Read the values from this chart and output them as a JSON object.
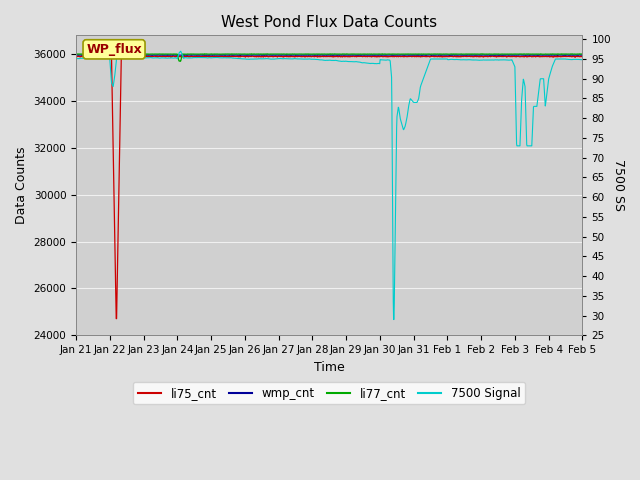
{
  "title": "West Pond Flux Data Counts",
  "xlabel": "Time",
  "ylabel_left": "Data Counts",
  "ylabel_right": "7500 SS",
  "ylim_left": [
    24000,
    36800
  ],
  "ylim_right": [
    25,
    101
  ],
  "yticks_left": [
    24000,
    26000,
    28000,
    30000,
    32000,
    34000,
    36000
  ],
  "yticks_right": [
    25,
    30,
    35,
    40,
    45,
    50,
    55,
    60,
    65,
    70,
    75,
    80,
    85,
    90,
    95,
    100
  ],
  "xtick_labels": [
    "Jan 21",
    "Jan 22",
    "Jan 23",
    "Jan 24",
    "Jan 25",
    "Jan 26",
    "Jan 27",
    "Jan 28",
    "Jan 29",
    "Jan 30",
    "Jan 31",
    "Feb 1",
    "Feb 2",
    "Feb 3",
    "Feb 4",
    "Feb 5"
  ],
  "bg_color": "#e0e0e0",
  "plot_bg_color": "#d0d0d0",
  "grid_color": "#f0f0f0",
  "annotation_text": "WP_flux",
  "annotation_box_color": "#ffff99",
  "annotation_border_color": "#999900",
  "li75_color": "#cc0000",
  "wmp_color": "#000099",
  "li77_color": "#00aa00",
  "signal7500_color": "#00cccc",
  "title_fontsize": 11,
  "axis_fontsize": 9,
  "tick_fontsize": 7.5,
  "legend_fontsize": 8.5
}
